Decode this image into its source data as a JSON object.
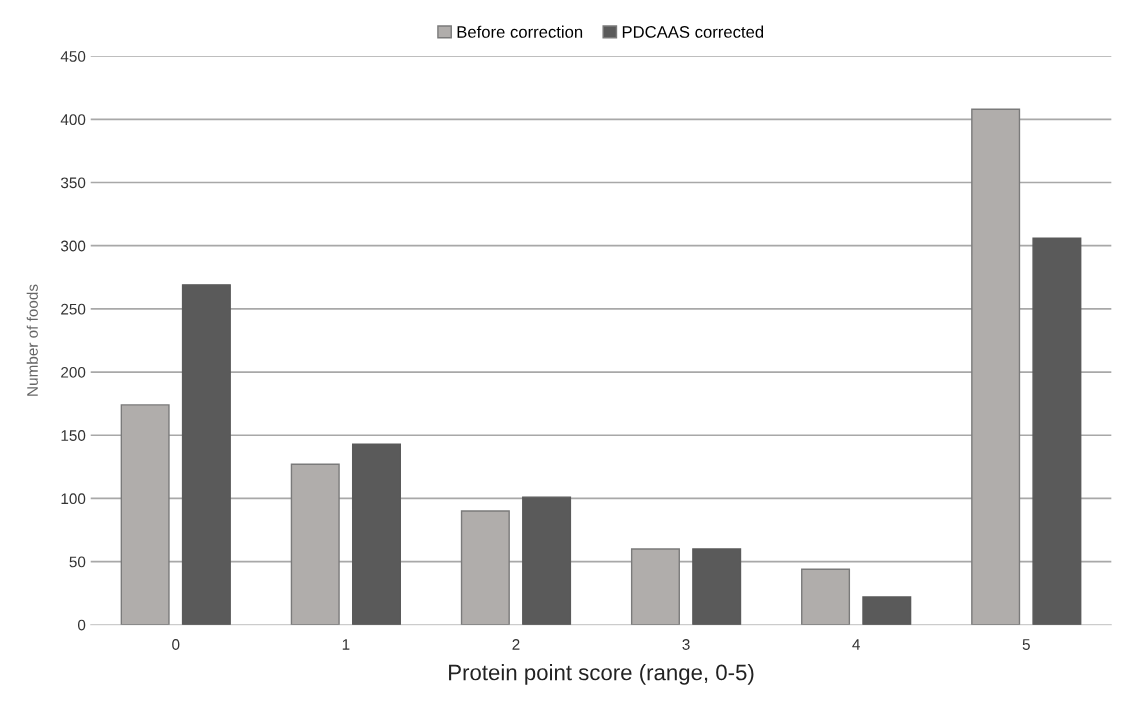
{
  "chart_data": {
    "type": "bar",
    "xlabel": "Protein point score (range, 0-5)",
    "ylabel": "Number of foods",
    "categories": [
      "0",
      "1",
      "2",
      "3",
      "4",
      "5"
    ],
    "series": [
      {
        "name": "Before correction",
        "color": "#b0adab",
        "values": [
          174,
          127,
          90,
          60,
          44,
          408
        ]
      },
      {
        "name": "PDCAAS corrected",
        "color": "#5a5a5a",
        "values": [
          269,
          143,
          101,
          60,
          22,
          306
        ]
      }
    ],
    "ylim": [
      0,
      450
    ],
    "yticks": [
      0,
      50,
      100,
      150,
      200,
      250,
      300,
      350,
      400,
      450
    ],
    "grid": "y",
    "legend": "top"
  }
}
